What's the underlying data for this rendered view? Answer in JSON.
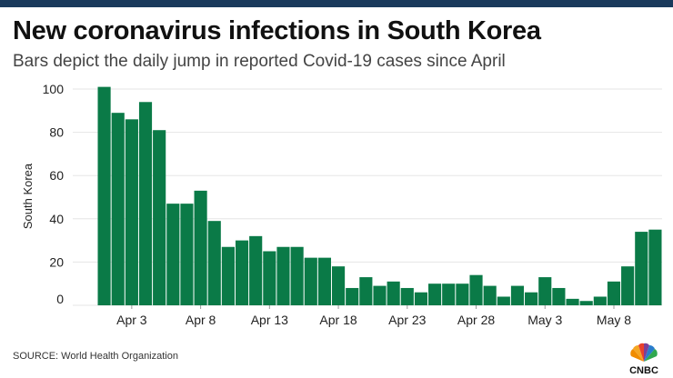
{
  "header": {
    "title": "New coronavirus infections in South Korea",
    "subtitle": "Bars depict the daily jump in reported Covid-19 cases since April"
  },
  "footer": {
    "source": "SOURCE: World Health Organization",
    "logo_text": "CNBC"
  },
  "colors": {
    "bar": "#0a7a47",
    "grid": "#e6e6e6",
    "text": "#222222",
    "brand_bar": "#1a3a5c"
  },
  "chart_data": {
    "type": "bar",
    "title": "New coronavirus infections in South Korea",
    "subtitle": "Bars depict the daily jump in reported Covid-19 cases since April",
    "xlabel": "",
    "ylabel": "South Korea",
    "ylim": [
      0,
      100
    ],
    "yticks": [
      100,
      80,
      60,
      40,
      20,
      0
    ],
    "xtick_labels": [
      "Apr 3",
      "Apr 8",
      "Apr 13",
      "Apr 18",
      "Apr 23",
      "Apr 28",
      "May 3",
      "May 8"
    ],
    "xtick_categories": [
      "Apr 3",
      "Apr 8",
      "Apr 13",
      "Apr 18",
      "Apr 23",
      "Apr 28",
      "May 3",
      "May 8"
    ],
    "categories": [
      "Apr 1",
      "Apr 2",
      "Apr 3",
      "Apr 4",
      "Apr 5",
      "Apr 6",
      "Apr 7",
      "Apr 8",
      "Apr 9",
      "Apr 10",
      "Apr 11",
      "Apr 12",
      "Apr 13",
      "Apr 14",
      "Apr 15",
      "Apr 16",
      "Apr 17",
      "Apr 18",
      "Apr 19",
      "Apr 20",
      "Apr 21",
      "Apr 22",
      "Apr 23",
      "Apr 24",
      "Apr 25",
      "Apr 26",
      "Apr 27",
      "Apr 28",
      "Apr 29",
      "Apr 30",
      "May 1",
      "May 2",
      "May 3",
      "May 4",
      "May 5",
      "May 6",
      "May 7",
      "May 8",
      "May 9",
      "May 10",
      "May 11"
    ],
    "values": [
      101,
      89,
      86,
      94,
      81,
      47,
      47,
      53,
      39,
      27,
      30,
      32,
      25,
      27,
      27,
      22,
      22,
      18,
      8,
      13,
      9,
      11,
      8,
      6,
      10,
      10,
      10,
      14,
      9,
      4,
      9,
      6,
      13,
      8,
      3,
      2,
      4,
      11,
      18,
      34,
      35
    ]
  }
}
